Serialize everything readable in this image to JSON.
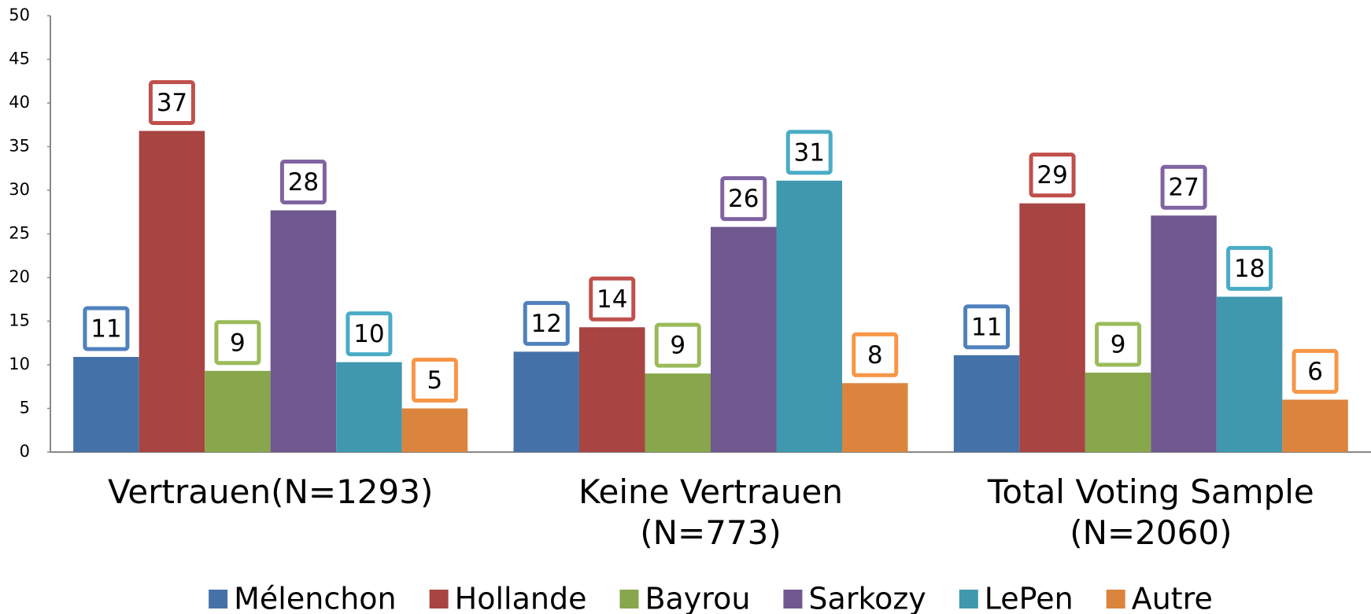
{
  "chart_data": {
    "type": "bar",
    "categories": [
      "Vertrauen(N=1293)",
      "Keine Vertrauen   (N=773)",
      "Total Voting Sample (N=2060)"
    ],
    "series": [
      {
        "name": "Mélenchon",
        "color": "#4472a8",
        "border_color": "#4f81bd",
        "values": [
          10.9,
          11.5,
          11.1
        ],
        "value_labels": [
          "11",
          "12",
          "11"
        ]
      },
      {
        "name": "Hollande",
        "color": "#a84442",
        "border_color": "#c0504d",
        "values": [
          36.8,
          14.3,
          28.5
        ],
        "value_labels": [
          "37",
          "14",
          "29"
        ]
      },
      {
        "name": "Bayrou",
        "color": "#88a64b",
        "border_color": "#9bbb59",
        "values": [
          9.3,
          9.0,
          9.1
        ],
        "value_labels": [
          "9",
          "9",
          "9"
        ]
      },
      {
        "name": "Sarkozy",
        "color": "#705890",
        "border_color": "#8064a2",
        "values": [
          27.7,
          25.8,
          27.1
        ],
        "value_labels": [
          "28",
          "26",
          "27"
        ]
      },
      {
        "name": "LePen",
        "color": "#3f98ae",
        "border_color": "#4bacc6",
        "values": [
          10.3,
          31.1,
          17.8
        ],
        "value_labels": [
          "10",
          "31",
          "18"
        ]
      },
      {
        "name": "Autre",
        "color": "#db843d",
        "border_color": "#f79646",
        "values": [
          5.0,
          7.9,
          6.0
        ],
        "value_labels": [
          "5",
          "8",
          "6"
        ]
      }
    ],
    "ylim": [
      0,
      50
    ],
    "yticks": [
      0,
      5,
      10,
      15,
      20,
      25,
      30,
      35,
      40,
      45,
      50
    ],
    "grid": false,
    "legend": "bottom"
  }
}
